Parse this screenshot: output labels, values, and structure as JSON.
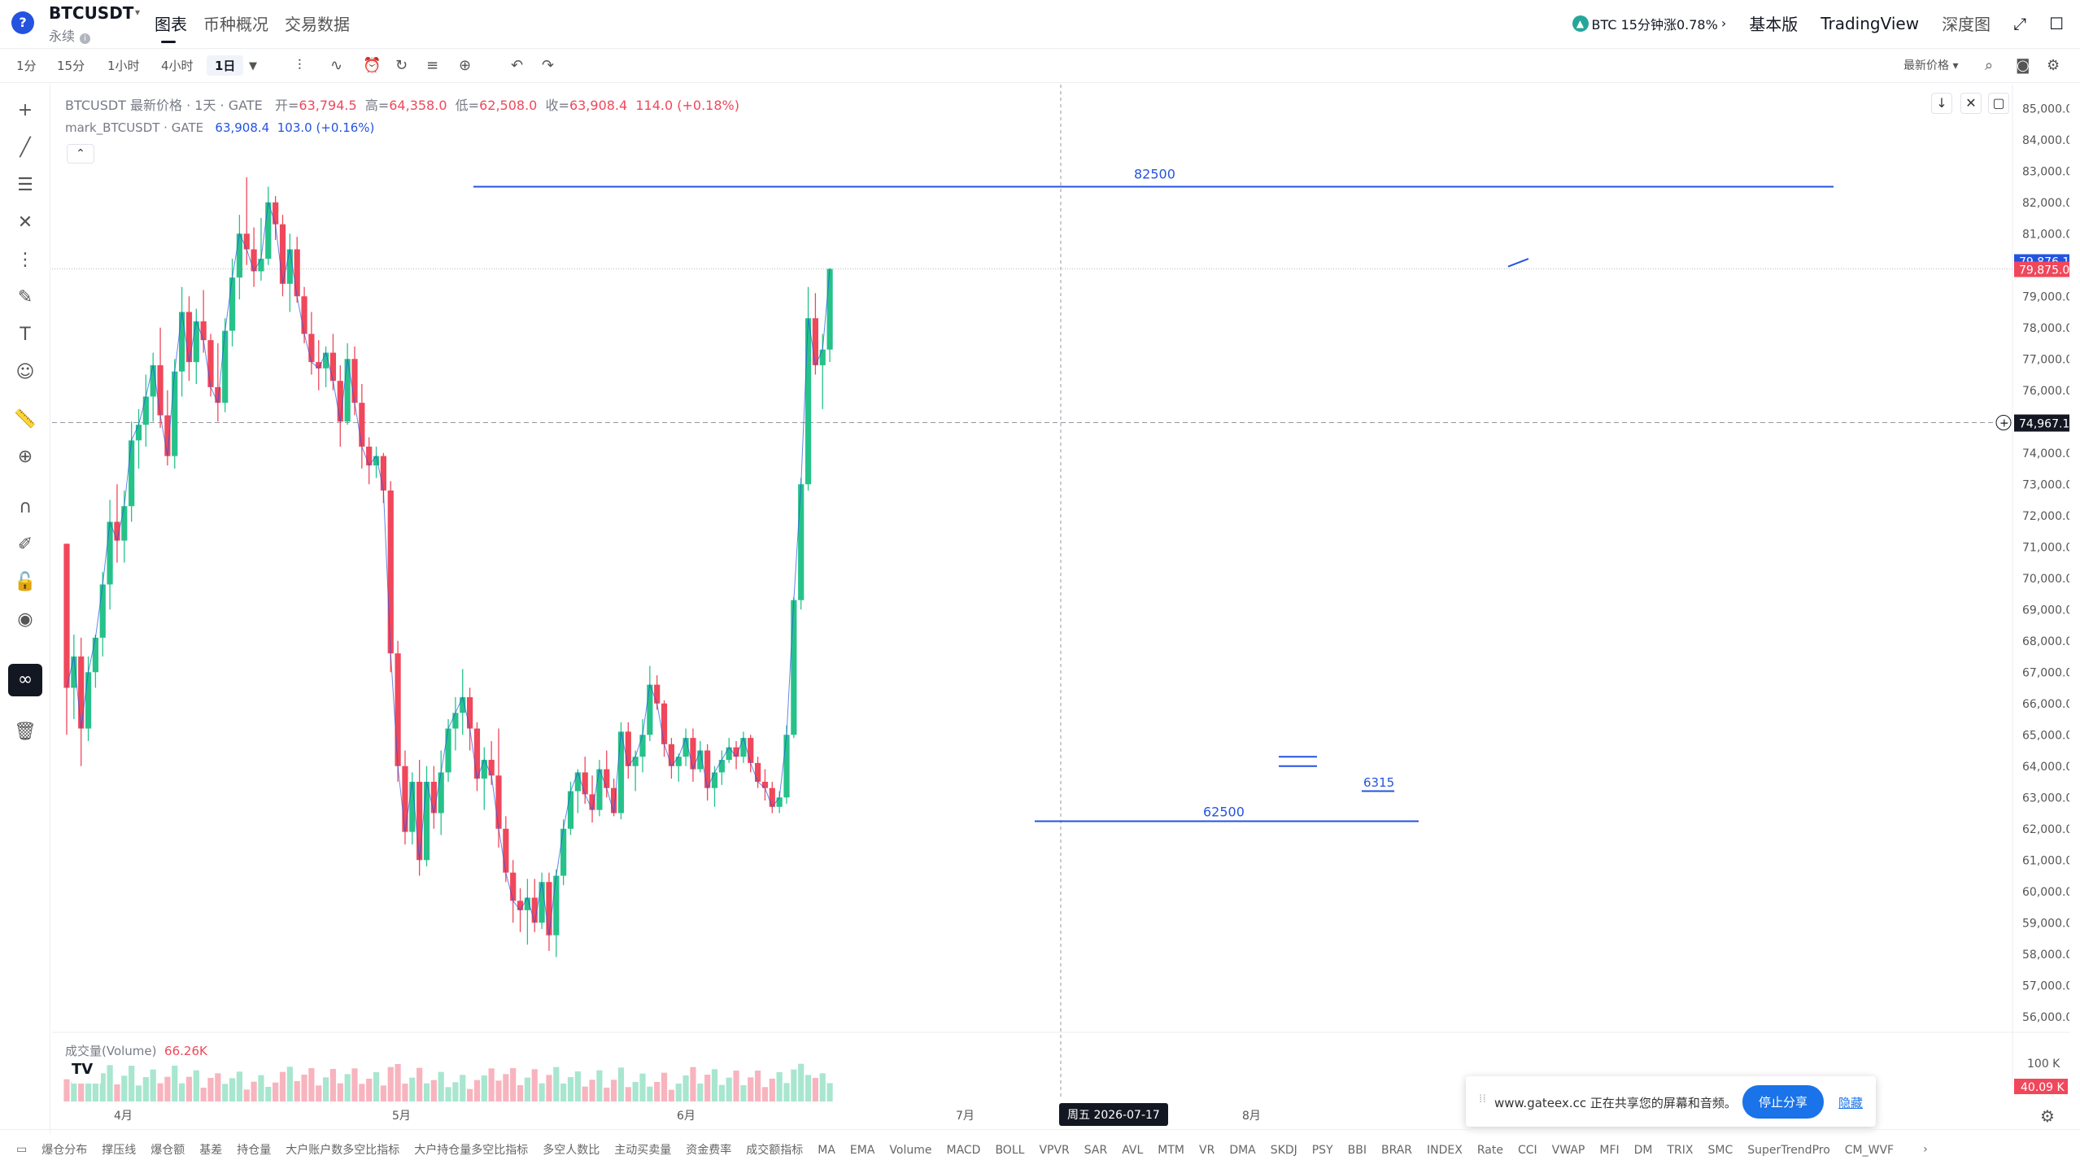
{
  "header": {
    "logo": "?",
    "symbol": "BTCUSDT",
    "contract": "永续",
    "tabs": [
      "图表",
      "币种概况",
      "交易数据"
    ],
    "active_tab": "图表",
    "news": "BTC 15分钟涨0.78%",
    "news_arrow": "›",
    "basic": "基本版",
    "tradingview": "TradingView",
    "depth": "深度图",
    "expand_icon": "⤢",
    "window_icon": "☐"
  },
  "toolbar": {
    "timeframes": [
      "1分",
      "15分",
      "1小时",
      "4小时",
      "1日"
    ],
    "active_timeframe": "1日",
    "price_type": "最新价格"
  },
  "legend": {
    "title": "BTCUSDT 最新价格 · 1天 · GATE",
    "o_label": "开=",
    "o": "63,794.5",
    "h_label": "高=",
    "h": "64,358.0",
    "l_label": "低=",
    "l": "62,508.0",
    "c_label": "收=",
    "c": "63,908.4",
    "chg": "114.0 (+0.18%)",
    "mark_name": "mark_BTCUSDT · GATE",
    "mark_val": "63,908.4",
    "mark_chg": "103.0 (+0.16%)",
    "collapse": "⌃"
  },
  "volume": {
    "label": "成交量(Volume)",
    "value": "66.26K",
    "axis_label": "100 K",
    "last_badge": "40.09 K"
  },
  "price_axis": {
    "ticks": [
      "85,000.0",
      "84,000.0",
      "83,000.0",
      "82,000.0",
      "81,000.0",
      "80,000.0",
      "79,000.0",
      "78,000.0",
      "77,000.0",
      "76,000.0",
      "75,000.0",
      "74,000.0",
      "73,000.0",
      "72,000.0",
      "71,000.0",
      "70,000.0",
      "69,000.0",
      "68,000.0",
      "67,000.0",
      "66,000.0",
      "65,000.0",
      "64,000.0",
      "63,000.0",
      "62,000.0",
      "61,000.0",
      "60,000.0",
      "59,000.0",
      "58,000.0",
      "57,000.0",
      "56,000.0"
    ],
    "badge_mark": "79,876.1",
    "badge_last": "79,875.0",
    "crosshair": "74,967.1",
    "crosshair_plus": "+"
  },
  "time_axis": {
    "labels": [
      "4月",
      "5月",
      "6月",
      "7月",
      "8月"
    ],
    "crosshair_date": "周五 2026-07-17"
  },
  "drawings": {
    "upper_line_label": "82500",
    "lower_line_label": "62500",
    "box_label": "6315"
  },
  "share_banner": {
    "grip": "⁞⁞",
    "text": "www.gateex.cc 正在共享您的屏幕和音频。",
    "stop": "停止分享",
    "hide": "隐藏"
  },
  "indicators": [
    "爆仓分布",
    "撑压线",
    "爆仓额",
    "基差",
    "持仓量",
    "大户账户数多空比指标",
    "大户持仓量多空比指标",
    "多空人数比",
    "主动买卖量",
    "资金费率",
    "成交额指标",
    "MA",
    "EMA",
    "Volume",
    "MACD",
    "BOLL",
    "VPVR",
    "SAR",
    "AVL",
    "MTM",
    "VR",
    "DMA",
    "SKDJ",
    "PSY",
    "BBI",
    "BRAR",
    "INDEX",
    "Rate",
    "CCI",
    "VWAP",
    "MFI",
    "DM",
    "TRIX",
    "SMC",
    "SuperTrendPro",
    "CM_WVF"
  ],
  "indicator_arrow": "›",
  "colors": {
    "up": "#26c28a",
    "down": "#f0475b",
    "accent": "#2453e0"
  },
  "chart_data": {
    "type": "candlestick",
    "x_labels": [
      "4月",
      "5月",
      "6月",
      "7月",
      "8月"
    ],
    "ylim": [
      55500,
      85500
    ],
    "hlines": [
      82500,
      62500
    ],
    "ohlc": [
      [
        71100,
        71100,
        65000,
        66500
      ],
      [
        66500,
        68200,
        65500,
        67500
      ],
      [
        67500,
        68100,
        64000,
        65200
      ],
      [
        65200,
        67500,
        64800,
        67000
      ],
      [
        67000,
        68200,
        66500,
        68100
      ],
      [
        68100,
        70200,
        67500,
        69800
      ],
      [
        69800,
        72500,
        69000,
        71800
      ],
      [
        71800,
        73000,
        70500,
        71200
      ],
      [
        71200,
        72800,
        70500,
        72300
      ],
      [
        72300,
        75000,
        71800,
        74400
      ],
      [
        74400,
        75400,
        73500,
        74900
      ],
      [
        74900,
        76500,
        74200,
        75800
      ],
      [
        75800,
        77200,
        75000,
        76800
      ],
      [
        76800,
        78000,
        74800,
        75200
      ],
      [
        75200,
        76000,
        73600,
        73900
      ],
      [
        73900,
        77000,
        73500,
        76600
      ],
      [
        76600,
        79300,
        75800,
        78500
      ],
      [
        78500,
        79000,
        76300,
        76900
      ],
      [
        76900,
        78600,
        76200,
        78200
      ],
      [
        78200,
        79200,
        77200,
        77600
      ],
      [
        77600,
        77800,
        75800,
        76100
      ],
      [
        76100,
        77500,
        75000,
        75600
      ],
      [
        75600,
        78300,
        75300,
        77900
      ],
      [
        77900,
        80200,
        77400,
        79600
      ],
      [
        79600,
        81600,
        78900,
        81000
      ],
      [
        81000,
        82800,
        80000,
        80500
      ],
      [
        80500,
        81200,
        79300,
        79800
      ],
      [
        79800,
        81500,
        79500,
        80200
      ],
      [
        80200,
        82500,
        80000,
        82000
      ],
      [
        82000,
        82200,
        80800,
        81300
      ],
      [
        81300,
        81600,
        79000,
        79400
      ],
      [
        79400,
        81000,
        78500,
        80500
      ],
      [
        80500,
        80900,
        78800,
        79000
      ],
      [
        79000,
        79300,
        77500,
        77800
      ],
      [
        77800,
        78500,
        76500,
        76900
      ],
      [
        76900,
        77600,
        76000,
        76700
      ],
      [
        76700,
        77400,
        76100,
        77200
      ],
      [
        77200,
        77800,
        76000,
        76300
      ],
      [
        76300,
        76800,
        74200,
        75000
      ],
      [
        75000,
        77500,
        74900,
        77000
      ],
      [
        77000,
        77400,
        75200,
        75600
      ],
      [
        75600,
        76200,
        73500,
        74200
      ],
      [
        74200,
        74500,
        73000,
        73600
      ],
      [
        73600,
        74200,
        73200,
        73900
      ],
      [
        73900,
        74000,
        72400,
        72800
      ],
      [
        72800,
        73100,
        67000,
        67600
      ],
      [
        67600,
        68000,
        63500,
        64000
      ],
      [
        64000,
        64500,
        61500,
        61900
      ],
      [
        61900,
        63800,
        61500,
        63500
      ],
      [
        63500,
        64200,
        60500,
        61000
      ],
      [
        61000,
        64000,
        60800,
        63500
      ],
      [
        63500,
        64000,
        62000,
        62500
      ],
      [
        62500,
        64500,
        61800,
        63800
      ],
      [
        63800,
        65500,
        63500,
        65200
      ],
      [
        65200,
        66200,
        64500,
        65700
      ],
      [
        65700,
        67100,
        65000,
        66200
      ],
      [
        66200,
        66500,
        64500,
        65200
      ],
      [
        65200,
        65400,
        63200,
        63600
      ],
      [
        63600,
        64600,
        62600,
        64200
      ],
      [
        64200,
        64800,
        63400,
        63700
      ],
      [
        63700,
        65200,
        61400,
        62000
      ],
      [
        62000,
        62400,
        60300,
        60600
      ],
      [
        60600,
        61000,
        59000,
        59700
      ],
      [
        59700,
        60100,
        58700,
        59400
      ],
      [
        59400,
        60400,
        58300,
        59800
      ],
      [
        59800,
        60400,
        58700,
        59000
      ],
      [
        59000,
        60600,
        58800,
        60300
      ],
      [
        60300,
        60600,
        58100,
        58600
      ],
      [
        58600,
        60700,
        57900,
        60500
      ],
      [
        60500,
        62300,
        60200,
        62000
      ],
      [
        62000,
        63500,
        61800,
        63200
      ],
      [
        63200,
        63900,
        62500,
        63800
      ],
      [
        63800,
        64300,
        62800,
        63100
      ],
      [
        63100,
        63700,
        62200,
        62600
      ],
      [
        62600,
        64200,
        62400,
        63900
      ],
      [
        63900,
        64500,
        63000,
        63300
      ],
      [
        63300,
        63600,
        62400,
        62500
      ],
      [
        62500,
        65400,
        62300,
        65100
      ],
      [
        65100,
        65400,
        63600,
        64000
      ],
      [
        64000,
        64500,
        63200,
        64300
      ],
      [
        64300,
        65500,
        63800,
        65000
      ],
      [
        65000,
        67200,
        64800,
        66600
      ],
      [
        66600,
        66900,
        65800,
        66000
      ],
      [
        66000,
        66100,
        64300,
        64700
      ],
      [
        64700,
        64900,
        63600,
        64000
      ],
      [
        64000,
        64400,
        63500,
        64300
      ],
      [
        64300,
        65200,
        64000,
        64900
      ],
      [
        64900,
        65200,
        63500,
        63900
      ],
      [
        63900,
        64800,
        63800,
        64500
      ],
      [
        64500,
        64700,
        62900,
        63300
      ],
      [
        63300,
        64000,
        62700,
        63800
      ],
      [
        63800,
        64500,
        63400,
        64200
      ],
      [
        64200,
        64900,
        64100,
        64600
      ],
      [
        64600,
        64800,
        63900,
        64300
      ],
      [
        64300,
        65100,
        64100,
        64900
      ],
      [
        64900,
        65000,
        63800,
        64100
      ],
      [
        64100,
        64300,
        63300,
        63500
      ],
      [
        63500,
        63900,
        62900,
        63300
      ],
      [
        63300,
        63500,
        62500,
        62700
      ],
      [
        62700,
        63200,
        62500,
        63000
      ],
      [
        63000,
        65300,
        62800,
        65000
      ],
      [
        65000,
        69400,
        64900,
        69300
      ],
      [
        69300,
        73200,
        69000,
        73000
      ],
      [
        73000,
        79300,
        72800,
        78300
      ],
      [
        78300,
        79100,
        76500,
        76800
      ],
      [
        76800,
        77800,
        75400,
        77300
      ],
      [
        77300,
        79900,
        76900,
        79875
      ]
    ]
  }
}
